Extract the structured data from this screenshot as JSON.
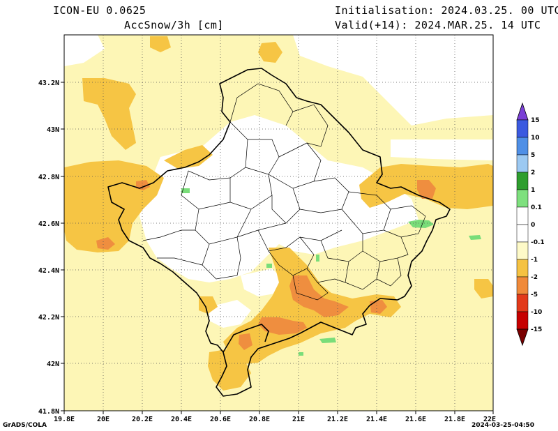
{
  "header": {
    "model": "ICON-EU 0.0625",
    "variable": "AccSnow/3h [cm]",
    "init": "Initialisation: 2024.03.25. 00 UTC",
    "valid": "Valid(+14): 2024.MAR.25. 14 UTC"
  },
  "footer": {
    "left": "GrADS/COLA",
    "right": "2024-03-25-04:50"
  },
  "axes": {
    "lon_ticks": [
      "19.8E",
      "20E",
      "20.2E",
      "20.4E",
      "20.6E",
      "20.8E",
      "21E",
      "21.2E",
      "21.4E",
      "21.6E",
      "21.8E",
      "22E"
    ],
    "lat_ticks": [
      "43.2N",
      "43N",
      "42.8N",
      "42.6N",
      "42.4N",
      "42.2N",
      "42N",
      "41.8N"
    ]
  },
  "colorbar": {
    "labels": [
      "15",
      "10",
      "5",
      "2",
      "1",
      "0.1",
      "0",
      "-0.1",
      "-1",
      "-2",
      "-5",
      "-10",
      "-15"
    ],
    "colors": [
      "#7a3fd6",
      "#3b5ae0",
      "#4f8fe6",
      "#9cc9f2",
      "#2e9e2e",
      "#7ee07e",
      "#ffffff",
      "#fefac8",
      "#f5c242",
      "#f08a3a",
      "#e23a1a",
      "#c60000",
      "#7a0000"
    ]
  },
  "colors": {
    "light_yellow": "#fdf6b6",
    "yellow": "#f6c544",
    "orange": "#ef8e3f",
    "green": "#79dd79"
  }
}
